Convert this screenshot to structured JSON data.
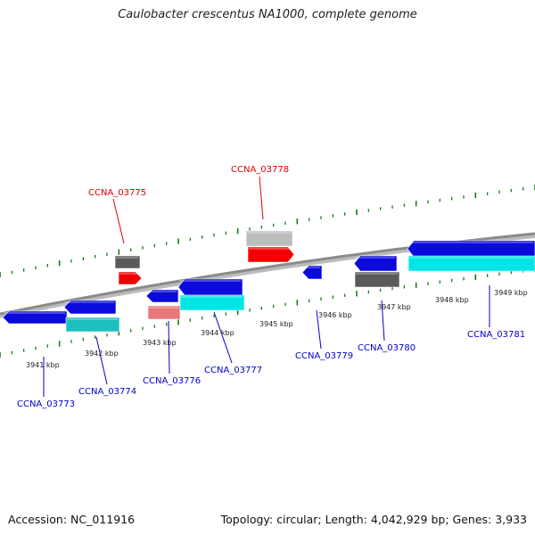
{
  "title": "Caulobacter crescentus NA1000, complete genome",
  "footer": {
    "accession": "Accession: NC_011916",
    "summary": "Topology: circular; Length: 4,042,929 bp; Genes: 3,933"
  },
  "colors": {
    "backbone": "#8a8a8a",
    "tick": "#1a7a1a",
    "label_blue": "#0000cc",
    "label_red": "#dd0000",
    "gene_blue": "#0a0adc",
    "gene_cyan": "#00e5e5",
    "gene_teal": "#1fbfbf",
    "gene_red": "#f20000",
    "gene_pink": "#e87878",
    "gene_gray": "#5a5a5a",
    "gene_lightgray": "#bdbdbd"
  },
  "kbp_labels": [
    "3941 kbp",
    "3942 kbp",
    "3943 kbp",
    "3944 kbp",
    "3945 kbp",
    "3946 kbp",
    "3947 kbp",
    "3948 kbp",
    "3949 kbp"
  ],
  "genes": [
    {
      "label": "CCNA_03773",
      "color": "blue"
    },
    {
      "label": "CCNA_03774",
      "color": "blue"
    },
    {
      "label": "CCNA_03775",
      "color": "red"
    },
    {
      "label": "CCNA_03776",
      "color": "blue"
    },
    {
      "label": "CCNA_03777",
      "color": "blue"
    },
    {
      "label": "CCNA_03778",
      "color": "red"
    },
    {
      "label": "CCNA_03779",
      "color": "blue"
    },
    {
      "label": "CCNA_03780",
      "color": "blue"
    },
    {
      "label": "CCNA_03781",
      "color": "blue"
    }
  ]
}
